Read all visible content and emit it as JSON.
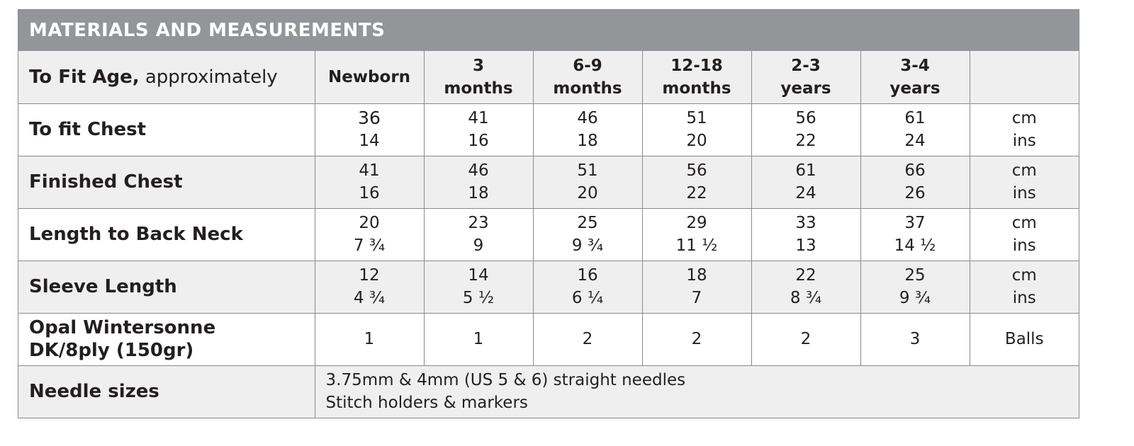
{
  "title": "MATERIALS AND MEASUREMENTS",
  "age_row": {
    "label_bold": "To Fit Age,",
    "label_light": " approximately",
    "sizes": [
      [
        "Newborn"
      ],
      [
        "3",
        "months"
      ],
      [
        "6-9",
        "months"
      ],
      [
        "12-18",
        "months"
      ],
      [
        "2-3",
        "years"
      ],
      [
        "3-4",
        "years"
      ]
    ]
  },
  "rows": [
    {
      "label": "To fit Chest",
      "cm": [
        "36",
        "41",
        "46",
        "51",
        "56",
        "61"
      ],
      "ins": [
        "14",
        "16",
        "18",
        "20",
        "22",
        "24"
      ],
      "unit_cm": "cm",
      "unit_ins": "ins"
    },
    {
      "label": "Finished Chest",
      "cm": [
        "41",
        "46",
        "51",
        "56",
        "61",
        "66"
      ],
      "ins": [
        "16",
        "18",
        "20",
        "22",
        "24",
        "26"
      ],
      "unit_cm": "cm",
      "unit_ins": "ins"
    },
    {
      "label": "Length to Back Neck",
      "cm": [
        "20",
        "23",
        "25",
        "29",
        "33",
        "37"
      ],
      "ins": [
        "7 ¾",
        "9",
        "9 ¾",
        "11 ½",
        "13",
        "14 ½"
      ],
      "unit_cm": "cm",
      "unit_ins": "ins"
    },
    {
      "label": "Sleeve Length",
      "cm": [
        "12",
        "14",
        "16",
        "18",
        "22",
        "25"
      ],
      "ins": [
        "4 ¾",
        "5 ½",
        "6 ¼",
        "7",
        "8 ¾",
        "9 ¾"
      ],
      "unit_cm": "cm",
      "unit_ins": "ins"
    }
  ],
  "yarn": {
    "label_line1": "Opal Wintersonne",
    "label_line2": "DK/8ply (150gr)",
    "values": [
      "1",
      "1",
      "2",
      "2",
      "2",
      "3"
    ],
    "unit": "Balls"
  },
  "needles": {
    "label": "Needle sizes",
    "line1": "3.75mm & 4mm (US 5 & 6) straight needles",
    "line2": "Stitch holders & markers"
  }
}
